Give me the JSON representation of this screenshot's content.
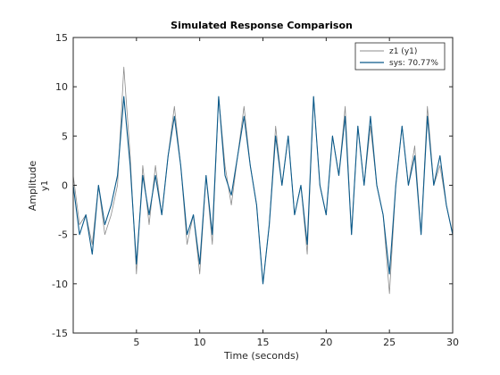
{
  "chart_data": {
    "type": "line",
    "title": "Simulated Response Comparison",
    "xlabel": "Time (seconds)",
    "ylabel": "Amplitude",
    "channel_label": "y1",
    "xlim": [
      0,
      30
    ],
    "ylim": [
      -15,
      15
    ],
    "x_ticks": [
      5,
      10,
      15,
      20,
      25,
      30
    ],
    "y_ticks": [
      -15,
      -10,
      -5,
      0,
      5,
      10,
      15
    ],
    "x_tick_labels": [
      "5",
      "10",
      "15",
      "20",
      "25",
      "30"
    ],
    "y_tick_labels": [
      "-15",
      "-10",
      "-5",
      "0",
      "5",
      "10",
      "15"
    ],
    "grid": false,
    "legend_position": "top-right",
    "x": [
      0,
      0.5,
      1.0,
      1.5,
      2.0,
      2.5,
      3.0,
      3.5,
      4.0,
      4.5,
      5.0,
      5.5,
      6.0,
      6.5,
      7.0,
      7.5,
      8.0,
      8.5,
      9.0,
      9.5,
      10.0,
      10.5,
      11.0,
      11.5,
      12.0,
      12.5,
      13.0,
      13.5,
      14.0,
      14.5,
      15.0,
      15.5,
      16.0,
      16.5,
      17.0,
      17.5,
      18.0,
      18.5,
      19.0,
      19.5,
      20.0,
      20.5,
      21.0,
      21.5,
      22.0,
      22.5,
      23.0,
      23.5,
      24.0,
      24.5,
      25.0,
      25.5,
      26.0,
      26.5,
      27.0,
      27.5,
      28.0,
      28.5,
      29.0,
      29.5,
      30.0
    ],
    "series": [
      {
        "name": "z1 (y1)",
        "color": "#8c8c8c",
        "values": [
          1,
          -4,
          -3,
          -6,
          0,
          -5,
          -3,
          0,
          12,
          3,
          -9,
          2,
          -4,
          2,
          -3,
          3,
          8,
          2,
          -6,
          -3,
          -9,
          1,
          -6,
          9,
          2,
          -2,
          3,
          8,
          2,
          -2,
          -10,
          -4,
          6,
          0,
          5,
          -3,
          0,
          -7,
          9,
          0,
          -3,
          5,
          1,
          8,
          -5,
          6,
          0,
          6,
          0,
          -3,
          -11,
          0,
          6,
          0,
          4,
          -5,
          8,
          0,
          2,
          -2,
          -5
        ]
      },
      {
        "name": "sys: 70.77%",
        "color": "#0b5a8a",
        "values": [
          0,
          -5,
          -3,
          -7,
          0,
          -4,
          -2,
          1,
          9,
          2,
          -8,
          1,
          -3,
          1,
          -3,
          3,
          7,
          2,
          -5,
          -3,
          -8,
          1,
          -5,
          9,
          1,
          -1,
          3,
          7,
          2,
          -2,
          -10,
          -4,
          5,
          0,
          5,
          -3,
          0,
          -6,
          9,
          0,
          -3,
          5,
          1,
          7,
          -5,
          6,
          0,
          7,
          0,
          -3,
          -9,
          0,
          6,
          0,
          3,
          -5,
          7,
          0,
          3,
          -2,
          -5
        ]
      }
    ]
  }
}
